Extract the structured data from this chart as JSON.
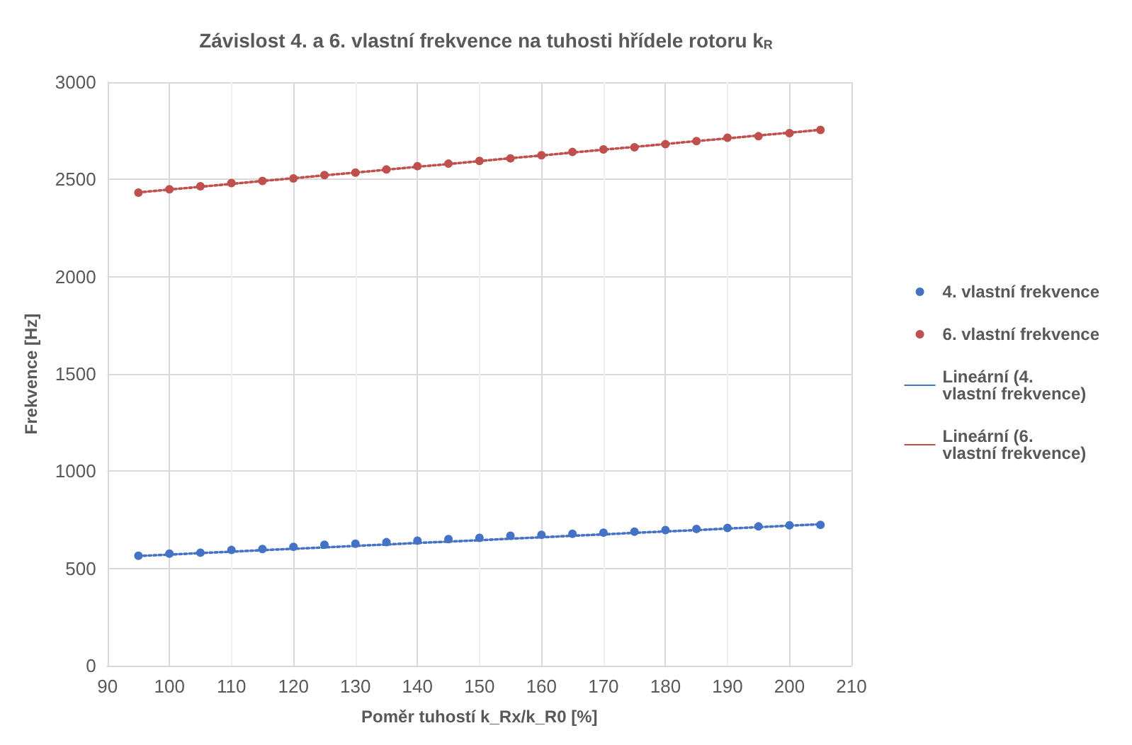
{
  "chart_data": {
    "type": "scatter",
    "title": "Závislost 4. a 6. vlastní frekvence na tuhosti hřídele rotoru k$_{R}$",
    "xlabel": "Poměr tuhostí k_Rx/k_R0 [%]",
    "ylabel": "Frekvence [Hz]",
    "x": [
      95,
      100,
      105,
      110,
      115,
      120,
      125,
      130,
      135,
      140,
      145,
      150,
      155,
      160,
      165,
      170,
      175,
      180,
      185,
      190,
      195,
      200,
      205
    ],
    "series": [
      {
        "name": "4. vlastní frekvence",
        "color": "#4472c4",
        "marker": "circle",
        "values": [
          565,
          576,
          581,
          595,
          600,
          611,
          622,
          627,
          635,
          643,
          651,
          657,
          668,
          673,
          678,
          684,
          689,
          697,
          703,
          708,
          716,
          722,
          724
        ]
      },
      {
        "name": "6. vlastní frekvence",
        "color": "#c0504d",
        "marker": "circle",
        "values": [
          2432,
          2449,
          2465,
          2481,
          2492,
          2505,
          2522,
          2535,
          2551,
          2568,
          2581,
          2595,
          2608,
          2624,
          2641,
          2654,
          2665,
          2681,
          2697,
          2714,
          2722,
          2738,
          2754
        ]
      },
      {
        "name": "Lineární (4. vlastní frekvence)",
        "type": "line",
        "color": "#4472c4",
        "marker": "none",
        "line_style": "dotted",
        "values": [
          564,
          571,
          579,
          586,
          594,
          601,
          608,
          616,
          623,
          631,
          638,
          645,
          653,
          660,
          668,
          675,
          683,
          690,
          697,
          705,
          712,
          720,
          727
        ]
      },
      {
        "name": "Lineární (6. vlastní frekvence)",
        "type": "line",
        "color": "#c0504d",
        "marker": "none",
        "line_style": "dotted",
        "values": [
          2433,
          2448,
          2462,
          2477,
          2492,
          2506,
          2521,
          2535,
          2550,
          2565,
          2579,
          2594,
          2609,
          2623,
          2638,
          2653,
          2667,
          2682,
          2697,
          2711,
          2726,
          2740,
          2755
        ]
      }
    ],
    "xlim": [
      90,
      210
    ],
    "xticks": [
      90,
      100,
      110,
      120,
      130,
      140,
      150,
      160,
      170,
      180,
      190,
      200,
      210
    ],
    "ylim": [
      0,
      3000
    ],
    "yticks": [
      0,
      500,
      1000,
      1500,
      2000,
      2500,
      3000
    ],
    "grid": true,
    "legend": "right"
  }
}
